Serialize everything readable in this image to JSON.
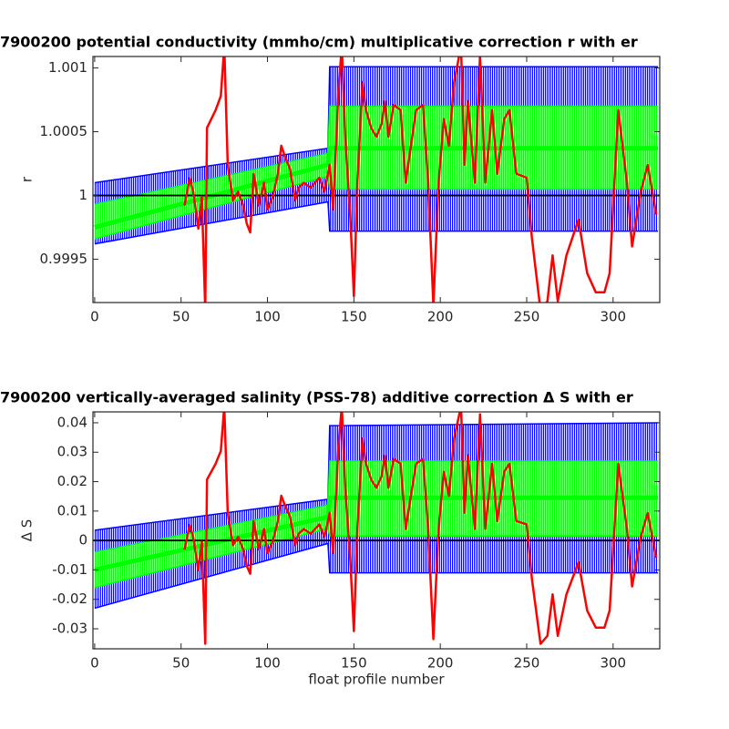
{
  "chart_data": [
    {
      "type": "line",
      "title": "7900200 potential conductivity (mmho/cm) multiplicative correction r with er",
      "ylabel": "r",
      "xlim": [
        -1,
        327
      ],
      "xticks": [
        0,
        50,
        100,
        150,
        200,
        250,
        300
      ],
      "ylim": [
        0.99916,
        1.00109
      ],
      "yticks": [
        1.001,
        1.0005,
        1,
        0.9995
      ],
      "x": [
        52,
        55,
        57,
        60,
        62,
        64,
        65,
        70,
        73,
        75,
        77,
        80,
        83,
        86,
        88,
        90,
        92,
        95,
        98,
        100,
        103,
        106,
        108,
        110,
        113,
        116,
        118,
        121,
        125,
        130,
        133,
        136,
        138,
        141,
        143,
        145,
        148,
        150,
        152,
        155,
        157,
        160,
        163,
        166,
        168,
        170,
        173,
        177,
        180,
        183,
        186,
        190,
        193,
        196,
        199,
        202,
        205,
        208,
        212,
        214,
        216,
        220,
        223,
        226,
        230,
        233,
        237,
        240,
        244,
        250,
        253,
        258,
        262,
        265,
        268,
        273,
        280,
        285,
        290,
        295,
        298,
        303,
        308,
        311,
        316,
        320,
        325
      ],
      "color": "#ff0000",
      "values": [
        0.99992,
        1.000136,
        1.000029,
        0.99974,
        0.99999,
        0.9991,
        1.00053,
        1.00067,
        1.00078,
        1.00117,
        1.00024,
        0.99996,
        1.00003,
        0.99992,
        0.99978,
        0.99971,
        1.00017,
        0.99992,
        1.0001,
        0.99989,
        0.99999,
        1.00017,
        1.00039,
        1.00031,
        1.00021,
        0.99996,
        1.00006,
        1.0001,
        1.00006,
        1.00014,
        1.00003,
        1.00024,
        0.99989,
        1.00081,
        1.00117,
        1.00046,
        0.99981,
        0.99921,
        1.0001,
        1.00089,
        1.00067,
        1.00053,
        1.00046,
        1.00056,
        1.00074,
        1.00046,
        1.00071,
        1.00067,
        1.0001,
        1.00039,
        1.00067,
        1.00071,
        1.0001,
        0.99914,
        1.0001,
        1.0006,
        1.00039,
        1.00089,
        1.00117,
        1.00024,
        1.00074,
        1.0001,
        1.0011,
        1.0001,
        1.00067,
        1.00017,
        1.0006,
        1.00067,
        1.00017,
        1.00014,
        0.99967,
        0.9991,
        0.99917,
        0.99953,
        0.99917,
        0.99953,
        0.99981,
        0.99939,
        0.99924,
        0.99924,
        0.99939,
        1.00067,
        1.0001,
        0.9996,
        1.00003,
        1.00024,
        0.99985
      ],
      "fit": {
        "x": [
          0,
          135,
          136,
          326
        ],
        "values": [
          0.99975,
          1.00024,
          1.00037,
          1.00037
        ],
        "color": "#00ff00"
      },
      "bands": [
        {
          "color": "#0000ff",
          "lower": [
            0.99962,
            0.99995,
            0.99972,
            0.99972
          ],
          "upper": [
            1.0001,
            1.00037,
            1.00101,
            1.00101
          ]
        },
        {
          "color": "#00ff00",
          "lower": [
            0.99966,
            1.00015,
            1.00005,
            1.00005
          ],
          "upper": [
            0.99993,
            1.00033,
            1.0007,
            1.0007
          ]
        }
      ],
      "reference": {
        "value": 1,
        "color": "#000000"
      }
    },
    {
      "type": "line",
      "title": "7900200 vertically-averaged salinity (PSS-78) additive correction Δ S with er",
      "ylabel": "Δ S",
      "xlabel": "float profile number",
      "xlim": [
        -1,
        327
      ],
      "xticks": [
        0,
        50,
        100,
        150,
        200,
        250,
        300
      ],
      "ylim": [
        -0.0368,
        0.0437
      ],
      "yticks": [
        0.04,
        0.03,
        0.02,
        0.01,
        0,
        -0.01,
        -0.02,
        -0.03
      ],
      "x": [
        52,
        55,
        57,
        60,
        62,
        64,
        65,
        70,
        73,
        75,
        77,
        80,
        83,
        86,
        88,
        90,
        92,
        95,
        98,
        100,
        103,
        106,
        108,
        110,
        113,
        116,
        118,
        121,
        125,
        130,
        133,
        136,
        138,
        141,
        143,
        145,
        148,
        150,
        152,
        155,
        157,
        160,
        163,
        166,
        168,
        170,
        173,
        177,
        180,
        183,
        186,
        190,
        193,
        196,
        199,
        202,
        205,
        208,
        212,
        214,
        216,
        220,
        223,
        226,
        230,
        233,
        237,
        240,
        244,
        250,
        253,
        258,
        262,
        265,
        268,
        273,
        280,
        285,
        290,
        295,
        298,
        303,
        308,
        311,
        316,
        320,
        325
      ],
      "color": "#ff0000",
      "values": [
        -0.0031,
        0.0053,
        0.0011,
        -0.0101,
        -0.0004,
        -0.0351,
        0.0207,
        0.0261,
        0.0304,
        0.0456,
        0.0094,
        -0.0016,
        0.0012,
        -0.0031,
        -0.0086,
        -0.0113,
        0.0066,
        -0.0031,
        0.0039,
        -0.0043,
        -0.0004,
        0.0066,
        0.0152,
        0.0121,
        0.0082,
        -0.0016,
        0.0023,
        0.0039,
        0.0023,
        0.0055,
        0.0012,
        0.0094,
        -0.0043,
        0.0316,
        0.0456,
        0.0179,
        -0.0074,
        -0.0308,
        0.0039,
        0.0347,
        0.0261,
        0.0207,
        0.0179,
        0.0218,
        0.0289,
        0.0179,
        0.0277,
        0.0261,
        0.0039,
        0.0152,
        0.0261,
        0.0277,
        0.0039,
        -0.0335,
        0.0039,
        0.0234,
        0.0152,
        0.0347,
        0.0456,
        0.0094,
        0.0289,
        0.0039,
        0.0429,
        0.0039,
        0.0261,
        0.0066,
        0.0234,
        0.0261,
        0.0066,
        0.0055,
        -0.0129,
        -0.0351,
        -0.0324,
        -0.0183,
        -0.0324,
        -0.0183,
        -0.0074,
        -0.0238,
        -0.0296,
        -0.0296,
        -0.0238,
        0.0261,
        0.0039,
        -0.0156,
        0.0012,
        0.0094,
        -0.0059
      ],
      "fit": {
        "x": [
          0,
          135,
          136,
          326
        ],
        "values": [
          -0.01,
          0.008,
          0.0145,
          0.0145
        ],
        "color": "#00ff00"
      },
      "bands": [
        {
          "color": "#0000ff",
          "lower": [
            -0.023,
            -0.001,
            -0.011,
            -0.011
          ],
          "upper": [
            0.0035,
            0.014,
            0.039,
            0.04
          ]
        },
        {
          "color": "#00ff00",
          "lower": [
            -0.016,
            0.004,
            0.0015,
            0.0015
          ],
          "upper": [
            -0.004,
            0.012,
            0.027,
            0.027
          ]
        }
      ],
      "reference": {
        "value": 0,
        "color": "#000000"
      }
    }
  ]
}
